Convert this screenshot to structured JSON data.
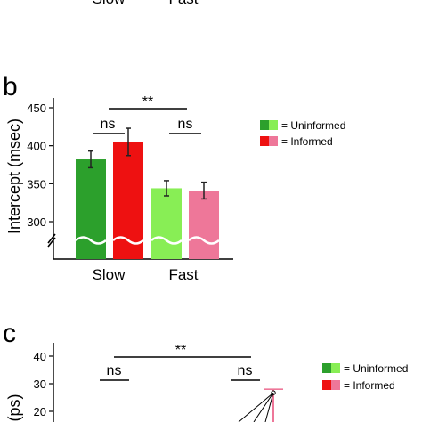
{
  "panel_a": {
    "tick_labels": [
      "Slow",
      "Fast"
    ]
  },
  "panel_b": {
    "panel_label": "b"
  },
  "panel_c": {
    "panel_label": "c"
  },
  "legend": {
    "uninformed_label": "= Uninformed",
    "informed_label": "= Informed"
  },
  "colors": {
    "slow_uninformed": "#2ca02c",
    "slow_informed": "#ee1111",
    "fast_uninformed": "#88ee55",
    "fast_informed": "#ee7799"
  },
  "chart_data": [
    {
      "panel": "b",
      "type": "bar",
      "title": "",
      "xlabel": "",
      "ylabel": "Intercept (msec)",
      "categories": [
        "Slow",
        "Fast"
      ],
      "series": [
        {
          "name": "Uninformed",
          "values": [
            382,
            344
          ],
          "errors": [
            11,
            10
          ]
        },
        {
          "name": "Informed",
          "values": [
            405,
            341
          ],
          "errors": [
            18,
            11
          ]
        }
      ],
      "y_ticks": [
        300,
        350,
        400,
        450
      ],
      "ylim": [
        255,
        460
      ],
      "axis_break": true,
      "annotations": [
        {
          "text": "**",
          "between": "Slow vs Fast"
        },
        {
          "text": "ns",
          "between": "Slow Uninformed vs Slow Informed"
        },
        {
          "text": "ns",
          "between": "Fast Uninformed vs Fast Informed"
        }
      ]
    },
    {
      "panel": "c",
      "type": "line",
      "title": "",
      "xlabel": "",
      "ylabel": "(ps)",
      "y_ticks": [
        20,
        30,
        40
      ],
      "ylim": [
        15,
        45
      ],
      "partial": true,
      "visible_points": [
        {
          "series": "Fast Informed",
          "y": 28
        }
      ],
      "annotations": [
        {
          "text": "**"
        },
        {
          "text": "ns"
        },
        {
          "text": "ns"
        }
      ]
    }
  ]
}
